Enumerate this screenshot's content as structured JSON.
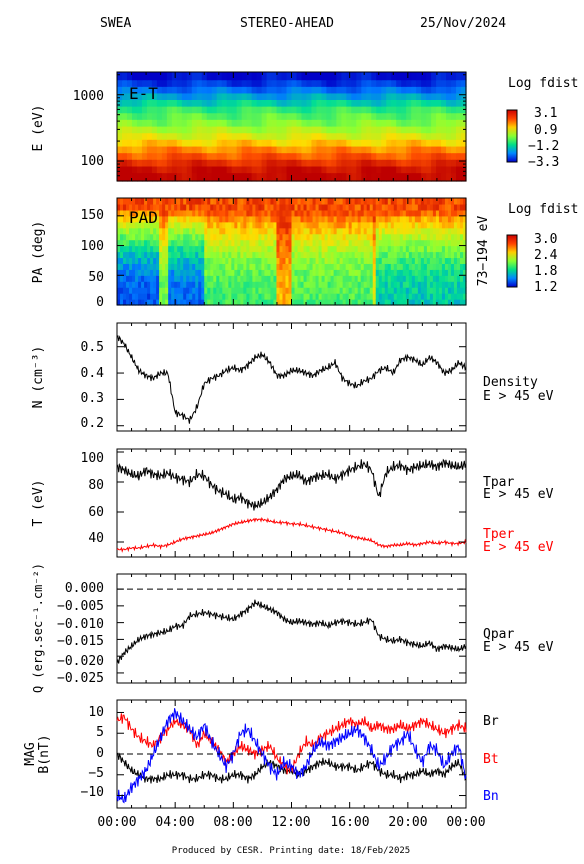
{
  "header": {
    "instrument": "SWEA",
    "spacecraft": "STEREO-AHEAD",
    "date": "25/Nov/2024"
  },
  "footer": "Produced by CESR.   Printing date: 18/Feb/2025",
  "colors": {
    "tpar": "#000000",
    "tper": "#ff0000",
    "br": "#000000",
    "bt": "#ff0000",
    "bn": "#0000ff"
  },
  "chart_data": [
    {
      "type": "heatmap",
      "panel": "energy-time",
      "label": "E-T",
      "ylabel": "E (eV)",
      "yscale": "log",
      "ylim": [
        50,
        2200
      ],
      "yticks": [
        "100",
        "1000"
      ],
      "colorbar": {
        "title": "Log fdist",
        "ticks": [
          "3.1",
          "0.9",
          "−1.2",
          "−3.3"
        ],
        "range": [
          -3.3,
          3.1
        ]
      },
      "description_values": {
        "energy_bands_eV": [
          60,
          75,
          95,
          120,
          150,
          190,
          240,
          300,
          380,
          480,
          600,
          760,
          950,
          1200,
          1500,
          1900
        ],
        "log_fdist": [
          3.1,
          2.9,
          2.5,
          2.0,
          1.6,
          1.1,
          0.6,
          0.2,
          -0.2,
          -0.5,
          -0.8,
          -1.3,
          -1.8,
          -2.3,
          -2.8,
          -3.2
        ]
      }
    },
    {
      "type": "heatmap",
      "panel": "pitch-angle",
      "label": "PAD",
      "ylabel": "PA (deg)",
      "ylim": [
        0,
        180
      ],
      "yticks": [
        "0",
        "50",
        "100",
        "150"
      ],
      "right_label": "73−194 eV",
      "colorbar": {
        "title": "Log fdist",
        "ticks": [
          "3.0",
          "2.4",
          "1.8",
          "1.2"
        ],
        "range": [
          1.2,
          3.0
        ]
      }
    },
    {
      "type": "line",
      "panel": "density",
      "ylabel": "N (cm⁻³)",
      "ylim": [
        0.18,
        0.59
      ],
      "yticks": [
        "0.2",
        "0.3",
        "0.4",
        "0.5"
      ],
      "series": [
        {
          "name": "Density",
          "sub": "E > 45 eV",
          "x": [
            0,
            0.5,
            1,
            1.5,
            2,
            2.5,
            3,
            3.5,
            4,
            4.5,
            5,
            5.5,
            6,
            6.5,
            7,
            7.5,
            8,
            8.5,
            9,
            9.5,
            10,
            10.5,
            11,
            11.5,
            12,
            12.5,
            13,
            13.5,
            14,
            14.5,
            15,
            15.5,
            16,
            16.5,
            17,
            17.5,
            18,
            18.5,
            19,
            19.5,
            20,
            20.5,
            21,
            21.5,
            22,
            22.5,
            23,
            23.5,
            24
          ],
          "values": [
            0.54,
            0.51,
            0.46,
            0.41,
            0.39,
            0.38,
            0.4,
            0.4,
            0.25,
            0.24,
            0.22,
            0.27,
            0.36,
            0.38,
            0.39,
            0.41,
            0.42,
            0.41,
            0.43,
            0.46,
            0.47,
            0.44,
            0.39,
            0.39,
            0.41,
            0.41,
            0.4,
            0.39,
            0.41,
            0.42,
            0.44,
            0.38,
            0.36,
            0.35,
            0.37,
            0.38,
            0.41,
            0.42,
            0.4,
            0.45,
            0.46,
            0.45,
            0.43,
            0.46,
            0.44,
            0.4,
            0.41,
            0.44,
            0.42
          ]
        }
      ],
      "legend": "Density",
      "legend_sub": "E > 45 eV"
    },
    {
      "type": "line",
      "panel": "temperature",
      "ylabel": "T (eV)",
      "ylim": [
        30,
        102
      ],
      "yticks": [
        "40",
        "60",
        "80",
        "100"
      ],
      "series": [
        {
          "name": "Tpar",
          "sub": "E > 45 eV",
          "x": [
            0,
            0.5,
            1,
            1.5,
            2,
            2.5,
            3,
            3.5,
            4,
            4.5,
            5,
            5.5,
            6,
            6.5,
            7,
            7.5,
            8,
            8.5,
            9,
            9.5,
            10,
            10.5,
            11,
            11.5,
            12,
            12.5,
            13,
            13.5,
            14,
            14.5,
            15,
            15.5,
            16,
            16.5,
            17,
            17.5,
            18,
            18.5,
            19,
            19.5,
            20,
            20.5,
            21,
            21.5,
            22,
            22.5,
            23,
            23.5,
            24
          ],
          "values": [
            90,
            88,
            85,
            84,
            88,
            85,
            84,
            86,
            83,
            82,
            80,
            85,
            84,
            78,
            74,
            72,
            68,
            70,
            66,
            64,
            66,
            70,
            75,
            82,
            84,
            85,
            80,
            83,
            84,
            85,
            82,
            85,
            88,
            90,
            92,
            88,
            70,
            86,
            90,
            91,
            88,
            90,
            91,
            92,
            90,
            93,
            91,
            90,
            92
          ]
        },
        {
          "name": "Tper",
          "sub": "E > 45 eV",
          "x": [
            0,
            0.5,
            1,
            1.5,
            2,
            2.5,
            3,
            3.5,
            4,
            4.5,
            5,
            5.5,
            6,
            6.5,
            7,
            7.5,
            8,
            8.5,
            9,
            9.5,
            10,
            10.5,
            11,
            11.5,
            12,
            12.5,
            13,
            13.5,
            14,
            14.5,
            15,
            15.5,
            16,
            16.5,
            17,
            17.5,
            18,
            18.5,
            19,
            19.5,
            20,
            20.5,
            21,
            21.5,
            22,
            22.5,
            23,
            23.5,
            24
          ],
          "values": [
            35,
            35,
            36,
            36,
            37,
            38,
            37,
            38,
            40,
            42,
            43,
            44,
            45,
            46,
            48,
            50,
            52,
            53,
            54,
            55,
            55,
            54,
            53,
            53,
            52,
            52,
            51,
            50,
            49,
            48,
            47,
            46,
            44,
            43,
            42,
            41,
            38,
            37,
            38,
            38,
            39,
            38,
            39,
            40,
            39,
            40,
            39,
            39,
            40
          ]
        }
      ]
    },
    {
      "type": "line",
      "panel": "heat-flux",
      "ylabel": "Q (erg.sec⁻¹.cm⁻²)",
      "ylim": [
        -0.028,
        0.0045
      ],
      "yticks": [
        "−0.025",
        "−0.020",
        "−0.015",
        "−0.010",
        "−0.005",
        "0.000"
      ],
      "reference_line": 0.0,
      "series": [
        {
          "name": "Qpar",
          "sub": "E > 45 eV",
          "x": [
            0,
            0.5,
            1,
            1.5,
            2,
            2.5,
            3,
            3.5,
            4,
            4.5,
            5,
            5.5,
            6,
            6.5,
            7,
            7.5,
            8,
            8.5,
            9,
            9.5,
            10,
            10.5,
            11,
            11.5,
            12,
            12.5,
            13,
            13.5,
            14,
            14.5,
            15,
            15.5,
            16,
            16.5,
            17,
            17.5,
            18,
            18.5,
            19,
            19.5,
            20,
            20.5,
            21,
            21.5,
            22,
            22.5,
            23,
            23.5,
            24
          ],
          "values": [
            -0.022,
            -0.019,
            -0.017,
            -0.015,
            -0.014,
            -0.0135,
            -0.013,
            -0.0125,
            -0.011,
            -0.011,
            -0.008,
            -0.0075,
            -0.007,
            -0.0075,
            -0.008,
            -0.0085,
            -0.009,
            -0.0075,
            -0.006,
            -0.004,
            -0.005,
            -0.006,
            -0.007,
            -0.009,
            -0.01,
            -0.0095,
            -0.01,
            -0.0105,
            -0.01,
            -0.011,
            -0.01,
            -0.0095,
            -0.01,
            -0.0105,
            -0.01,
            -0.009,
            -0.014,
            -0.015,
            -0.0155,
            -0.015,
            -0.016,
            -0.0165,
            -0.017,
            -0.016,
            -0.018,
            -0.017,
            -0.0175,
            -0.018,
            -0.017
          ]
        }
      ]
    },
    {
      "type": "line",
      "panel": "magnetic-field",
      "ylabel": "MAG",
      "ylabel2": "B(nT)",
      "ylim": [
        -13,
        13
      ],
      "yticks": [
        "−10",
        "−5",
        "0",
        "5",
        "10"
      ],
      "series": [
        {
          "name": "Br",
          "x": [
            0,
            0.5,
            1,
            1.5,
            2,
            2.5,
            3,
            3.5,
            4,
            4.5,
            5,
            5.5,
            6,
            6.5,
            7,
            7.5,
            8,
            8.5,
            9,
            9.5,
            10,
            10.5,
            11,
            11.5,
            12,
            12.5,
            13,
            13.5,
            14,
            14.5,
            15,
            15.5,
            16,
            16.5,
            17,
            17.5,
            18,
            18.5,
            19,
            19.5,
            20,
            20.5,
            21,
            21.5,
            22,
            22.5,
            23,
            23.5,
            24
          ],
          "values": [
            0,
            -2,
            -4,
            -5,
            -6,
            -6,
            -6,
            -5,
            -5,
            -5,
            -6,
            -6,
            -5,
            -5,
            -6,
            -6,
            -5,
            -5,
            -6,
            -5,
            -3,
            -2,
            -3,
            -4,
            -4,
            -5,
            -4,
            -3,
            -2,
            -2,
            -3,
            -3,
            -3,
            -4,
            -3,
            -2,
            -4,
            -5,
            -5,
            -6,
            -5,
            -5,
            -4,
            -5,
            -4,
            -5,
            -3,
            -2,
            -6
          ]
        },
        {
          "name": "Bt",
          "x": [
            0,
            0.5,
            1,
            1.5,
            2,
            2.5,
            3,
            3.5,
            4,
            4.5,
            5,
            5.5,
            6,
            6.5,
            7,
            7.5,
            8,
            8.5,
            9,
            9.5,
            10,
            10.5,
            11,
            11.5,
            12,
            12.5,
            13,
            13.5,
            14,
            14.5,
            15,
            15.5,
            16,
            16.5,
            17,
            17.5,
            18,
            18.5,
            19,
            19.5,
            20,
            20.5,
            21,
            21.5,
            22,
            22.5,
            23,
            23.5,
            24
          ],
          "values": [
            8,
            9,
            6,
            4,
            3,
            2,
            4,
            6,
            8,
            7,
            6,
            2,
            5,
            3,
            1,
            -2,
            0,
            2,
            1,
            0,
            1,
            2,
            -1,
            -3,
            -4,
            0,
            3,
            2,
            4,
            5,
            6,
            7,
            8,
            7,
            8,
            6,
            7,
            6,
            6,
            7,
            6,
            7,
            8,
            7,
            6,
            5,
            6,
            7,
            6
          ]
        },
        {
          "name": "Bn",
          "x": [
            0,
            0.5,
            1,
            1.5,
            2,
            2.5,
            3,
            3.5,
            4,
            4.5,
            5,
            5.5,
            6,
            6.5,
            7,
            7.5,
            8,
            8.5,
            9,
            9.5,
            10,
            10.5,
            11,
            11.5,
            12,
            12.5,
            13,
            13.5,
            14,
            14.5,
            15,
            15.5,
            16,
            16.5,
            17,
            17.5,
            18,
            18.5,
            19,
            19.5,
            20,
            20.5,
            21,
            21.5,
            22,
            22.5,
            23,
            23.5,
            24
          ],
          "values": [
            -10,
            -11,
            -8,
            -6,
            -4,
            0,
            4,
            8,
            10,
            8,
            6,
            4,
            7,
            3,
            0,
            -3,
            0,
            5,
            6,
            3,
            0,
            -3,
            -5,
            -2,
            -3,
            -5,
            -3,
            1,
            3,
            2,
            3,
            4,
            5,
            6,
            4,
            1,
            -3,
            -1,
            2,
            3,
            5,
            1,
            -2,
            2,
            1,
            -3,
            0,
            2,
            -6
          ]
        }
      ]
    }
  ],
  "xaxis": {
    "ticks": [
      "00:00",
      "04:00",
      "08:00",
      "12:00",
      "16:00",
      "20:00",
      "00:00"
    ],
    "range": [
      0,
      24
    ]
  }
}
